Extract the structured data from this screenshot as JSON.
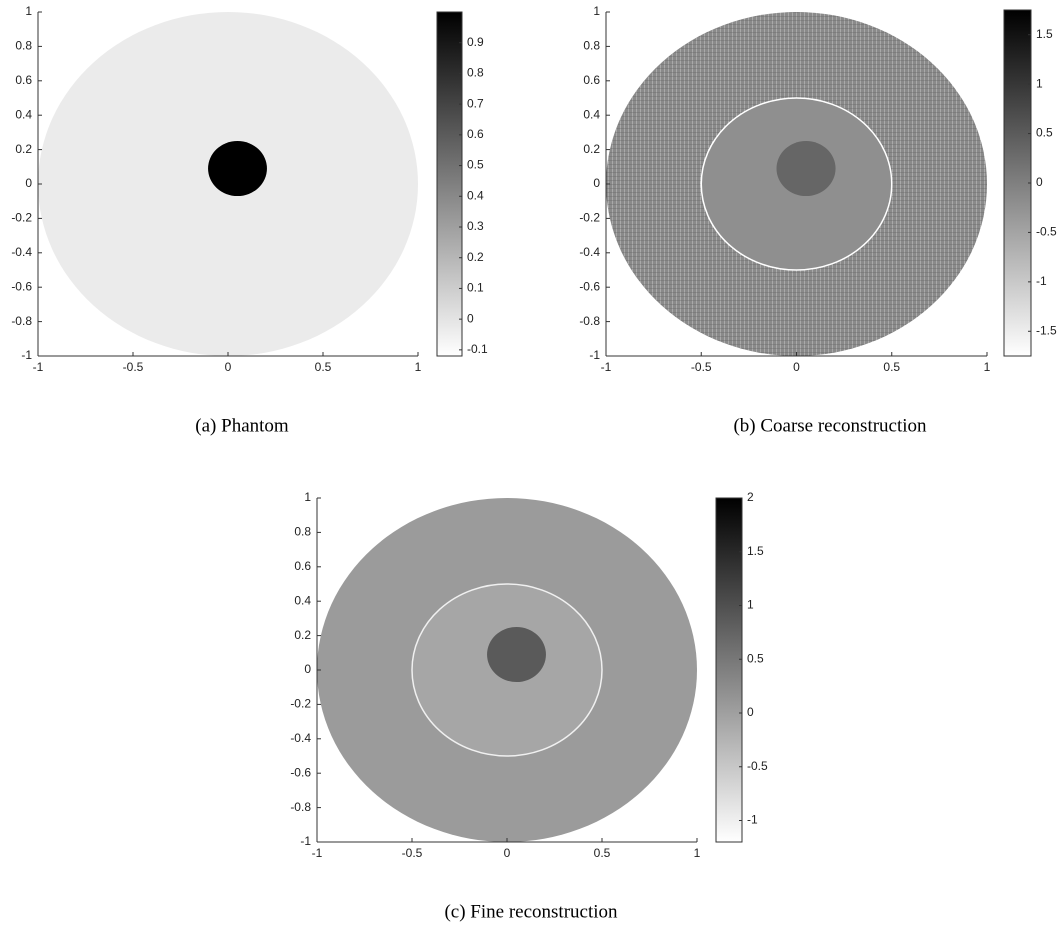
{
  "chart_data": [
    {
      "type": "image",
      "caption": "(a) Phantom",
      "xlim": [
        -1,
        1
      ],
      "ylim": [
        -1,
        1
      ],
      "xticks": [
        -1,
        -0.5,
        0,
        0.5,
        1
      ],
      "yticks": [
        -1,
        -0.8,
        -0.6,
        -0.4,
        -0.2,
        0,
        0.2,
        0.4,
        0.6,
        0.8,
        1
      ],
      "clim": [
        -0.12,
        1.0
      ],
      "cticks": [
        -0.1,
        0,
        0.1,
        0.2,
        0.3,
        0.4,
        0.5,
        0.6,
        0.7,
        0.8,
        0.9
      ]
    },
    {
      "type": "image",
      "caption": "(b) Coarse reconstruction",
      "xlim": [
        -1,
        1
      ],
      "ylim": [
        -1,
        1
      ],
      "xticks": [
        -1,
        -0.5,
        0,
        0.5,
        1
      ],
      "yticks": [
        -1,
        -0.8,
        -0.6,
        -0.4,
        -0.2,
        0,
        0.2,
        0.4,
        0.6,
        0.8,
        1
      ],
      "clim": [
        -1.75,
        1.75
      ],
      "cticks": [
        -1.5,
        -1,
        -0.5,
        0,
        0.5,
        1,
        1.5
      ]
    },
    {
      "type": "image",
      "caption": "(c) Fine reconstruction",
      "xlim": [
        -1,
        1
      ],
      "ylim": [
        -1,
        1
      ],
      "xticks": [
        -1,
        -0.5,
        0,
        0.5,
        1
      ],
      "yticks": [
        -1,
        -0.8,
        -0.6,
        -0.4,
        -0.2,
        0,
        0.2,
        0.4,
        0.6,
        0.8,
        1
      ],
      "clim": [
        -1.2,
        2
      ],
      "cticks": [
        -1,
        -0.5,
        0,
        0.5,
        1,
        1.5,
        2
      ]
    }
  ]
}
